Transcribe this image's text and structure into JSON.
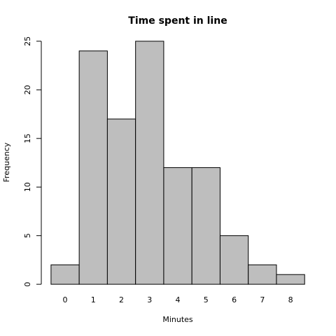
{
  "chart_data": {
    "type": "histogram",
    "title": "Time spent in line",
    "x_label": "Minutes",
    "y_label": "Frequency",
    "bins": [
      -0.5,
      0.5,
      1.5,
      2.5,
      3.5,
      4.5,
      5.5,
      6.5,
      7.5,
      8.5
    ],
    "values": [
      2,
      24,
      17,
      25,
      12,
      12,
      5,
      2,
      1
    ],
    "color": "#bebebe",
    "xlim": [
      -0.86,
      8.86
    ],
    "xticks": [
      0,
      1,
      2,
      3,
      4,
      5,
      6,
      7,
      8
    ],
    "ylim": [
      -1,
      26
    ],
    "yticks": [
      0,
      5,
      10,
      15,
      20,
      25
    ]
  }
}
